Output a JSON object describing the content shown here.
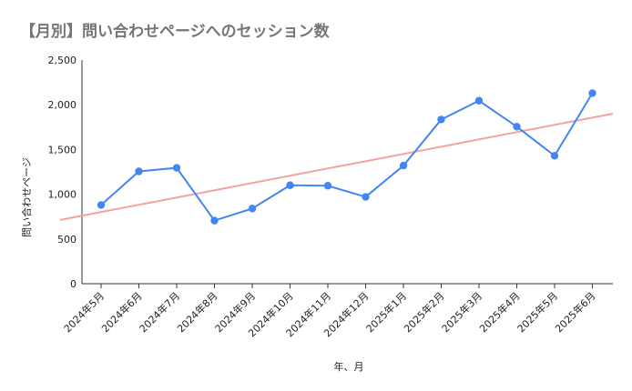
{
  "chart_data": {
    "type": "line",
    "title": "【月別】問い合わせページへのセッション数",
    "xlabel": "年、月",
    "ylabel": "問い合わせページ",
    "categories": [
      "2024年5月",
      "2024年6月",
      "2024年7月",
      "2024年8月",
      "2024年9月",
      "2024年10月",
      "2024年11月",
      "2024年12月",
      "2025年1月",
      "2025年2月",
      "2025年3月",
      "2025年4月",
      "2025年5月",
      "2025年6月"
    ],
    "series": [
      {
        "values": [
          880,
          1255,
          1295,
          705,
          840,
          1100,
          1095,
          970,
          1320,
          1835,
          2045,
          1755,
          1430,
          2130
        ],
        "color": "#4285f4"
      }
    ],
    "trendline": {
      "type": "linear",
      "color": "#f4a0a0",
      "start_value": 760,
      "end_value": 1900
    },
    "ylim": [
      0,
      2500
    ],
    "yticks": [
      0,
      500,
      1000,
      1500,
      2000,
      2500
    ],
    "ytick_labels": [
      "0",
      "500",
      "1,000",
      "1,500",
      "2,000",
      "2,500"
    ],
    "grid": false,
    "legend": "none"
  }
}
